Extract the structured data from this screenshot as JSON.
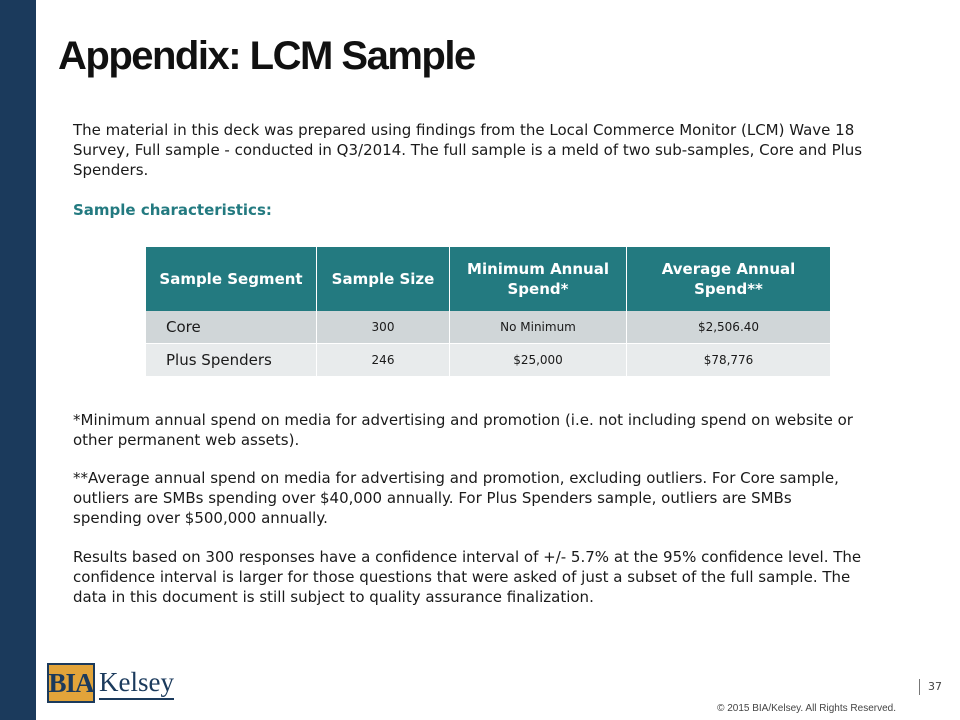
{
  "slide": {
    "title": "Appendix: LCM Sample",
    "intro": "The material in this deck was prepared using findings from the Local Commerce Monitor (LCM) Wave 18 Survey, Full sample - conducted in Q3/2014. The full sample is a meld of two sub-samples, Core and Plus Spenders.",
    "subhead": "Sample characteristics:",
    "table": {
      "headers": [
        "Sample Segment",
        "Sample Size",
        "Minimum Annual Spend*",
        "Average Annual Spend**"
      ],
      "rows": [
        [
          "Core",
          "300",
          "No Minimum",
          "$2,506.40"
        ],
        [
          "Plus Spenders",
          "246",
          "$25,000",
          "$78,776"
        ]
      ]
    },
    "footnote1": "*Minimum annual spend on media for advertising and promotion (i.e. not including spend on website or other permanent web assets).",
    "footnote2": "**Average annual spend on media for advertising and promotion, excluding outliers. For Core sample, outliers are SMBs spending over $40,000 annually. For Plus Spenders sample, outliers are SMBs spending over $500,000 annually.",
    "results": "Results based on 300 responses have a confidence interval of +/- 5.7% at the 95% confidence level. The confidence interval is larger for those questions that were asked of just a subset of the full sample. The data in this document is still subject to quality assurance finalization."
  },
  "footer": {
    "logo_box": "BIA",
    "logo_word": "Kelsey",
    "page_number": "37",
    "copyright": "© 2015 BIA/Kelsey. All Rights Reserved."
  },
  "colors": {
    "sidebar": "#1b3a5c",
    "accent_teal": "#237a80",
    "logo_gold": "#e2a43a"
  }
}
